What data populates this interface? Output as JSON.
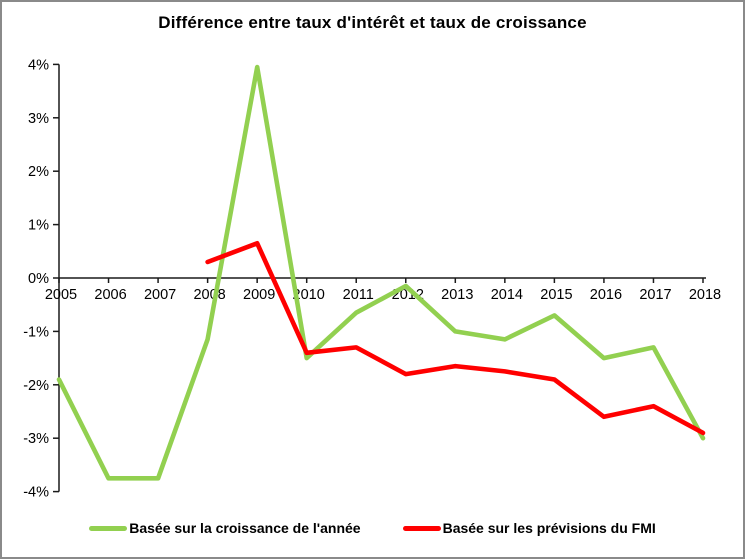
{
  "chart_data": {
    "type": "line",
    "title": "Différence entre taux d'intérêt et taux de croissance",
    "categories": [
      "2005",
      "2006",
      "2007",
      "2008",
      "2009",
      "2010",
      "2011",
      "2012",
      "2013",
      "2014",
      "2015",
      "2016",
      "2017",
      "2018"
    ],
    "series": [
      {
        "name": "Basée sur la croissance de l'année",
        "color": "#92D050",
        "values": [
          -1.9,
          -3.75,
          -3.75,
          -1.15,
          3.95,
          -1.5,
          -0.65,
          -0.15,
          -1.0,
          -1.15,
          -0.7,
          -1.5,
          -1.3,
          -3.0
        ]
      },
      {
        "name": "Basée sur les prévisions du FMI",
        "color": "#FF0000",
        "values": [
          null,
          null,
          null,
          0.3,
          0.65,
          -1.4,
          -1.3,
          -1.8,
          -1.65,
          -1.75,
          -1.9,
          -2.6,
          -2.4,
          -2.9
        ]
      }
    ],
    "ylim": [
      -4,
      4
    ],
    "yticks": [
      4,
      3,
      2,
      1,
      0,
      -1,
      -2,
      -3,
      -4
    ],
    "ytick_suffix": "%",
    "xlabel": "",
    "ylabel": "",
    "grid": false,
    "legend_position": "bottom",
    "axis_color": "#1a1a1a"
  }
}
